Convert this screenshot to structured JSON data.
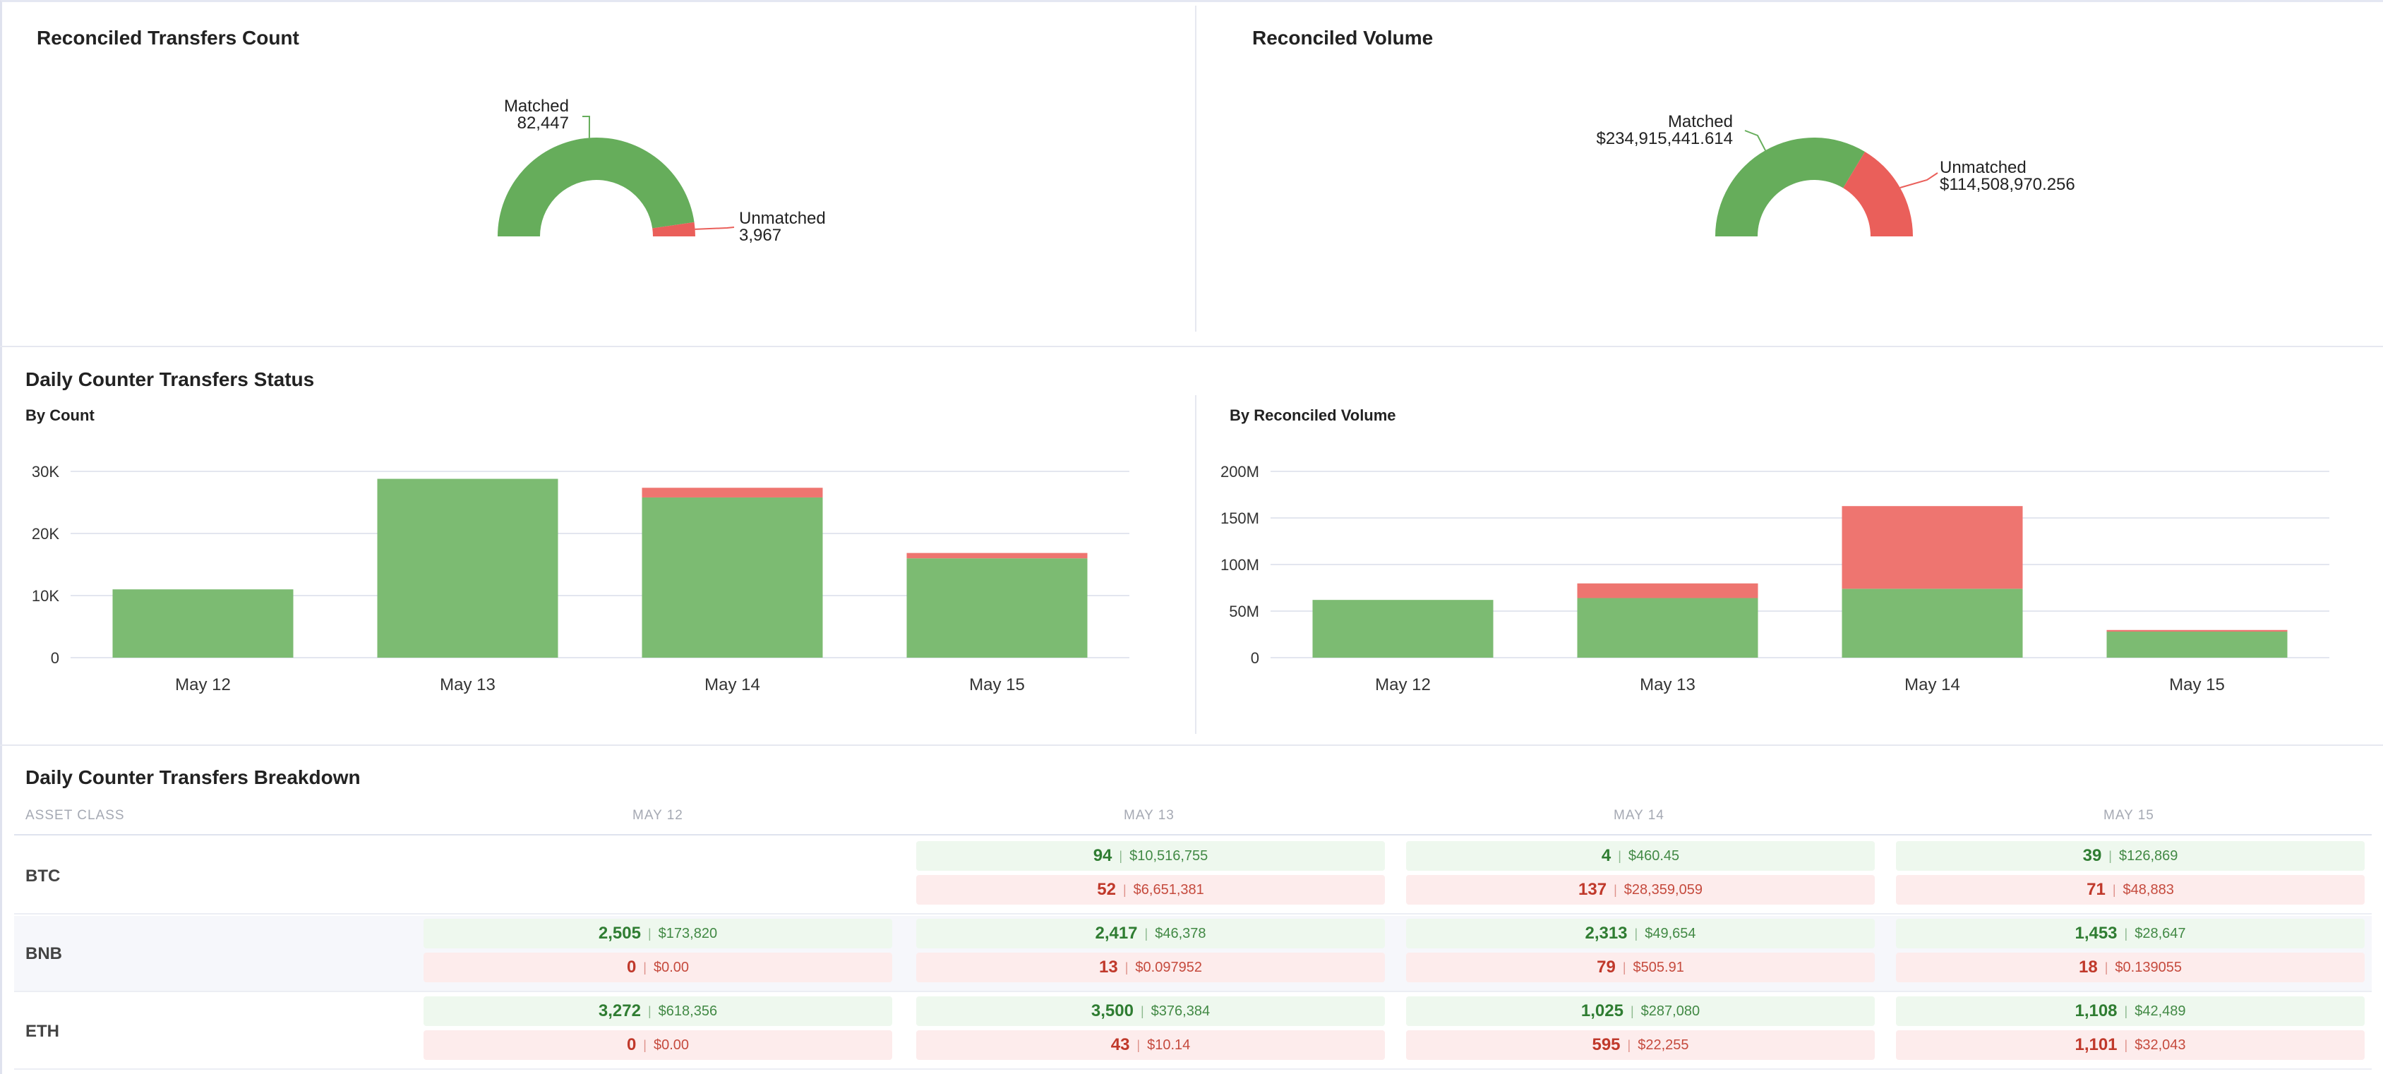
{
  "count_panel": {
    "title": "Reconciled Transfers Count",
    "matched_label": "Matched",
    "matched_value": "82,447",
    "unmatched_label": "Unmatched",
    "unmatched_value": "3,967",
    "matched_fraction": 0.954
  },
  "volume_panel": {
    "title": "Reconciled Volume",
    "matched_label": "Matched",
    "matched_value": "$234,915,441.614",
    "unmatched_label": "Unmatched",
    "unmatched_value": "$114,508,970.256",
    "matched_fraction": 0.672
  },
  "daily_status": {
    "title": "Daily Counter Transfers Status",
    "count_subtitle": "By Count",
    "volume_subtitle": "By Reconciled Volume"
  },
  "chart_data": [
    {
      "type": "bar",
      "title": "By Count",
      "categories": [
        "May 12",
        "May 13",
        "May 14",
        "May 15"
      ],
      "series": [
        {
          "name": "Matched",
          "values": [
            11000,
            28800,
            25800,
            16000
          ]
        },
        {
          "name": "Unmatched",
          "values": [
            0,
            0,
            1900,
            1200
          ]
        }
      ],
      "yticks": [
        "0",
        "10K",
        "20K",
        "30K"
      ],
      "ylim": [
        0,
        30000
      ],
      "stacked": true,
      "colors": {
        "Matched": "#7cbb72",
        "Unmatched": "#ee7570"
      }
    },
    {
      "type": "bar",
      "title": "By Reconciled Volume",
      "categories": [
        "May 12",
        "May 13",
        "May 14",
        "May 15"
      ],
      "series": [
        {
          "name": "Matched",
          "values": [
            62000000,
            64000000,
            74000000,
            28000000
          ]
        },
        {
          "name": "Unmatched",
          "values": [
            0,
            18000000,
            91000000,
            4000000
          ]
        }
      ],
      "yticks": [
        "0",
        "50M",
        "100M",
        "150M",
        "200M"
      ],
      "ylim": [
        0,
        200000000
      ],
      "stacked": true,
      "colors": {
        "Matched": "#7cbb72",
        "Unmatched": "#ee7570"
      }
    }
  ],
  "breakdown": {
    "title": "Daily Counter Transfers Breakdown",
    "headers": [
      "ASSET CLASS",
      "MAY 12",
      "MAY 13",
      "MAY 14",
      "MAY 15"
    ],
    "rows": [
      {
        "asset": "BTC",
        "cells": [
          null,
          {
            "g_count": "94",
            "g_vol": "$10,516,755",
            "r_count": "52",
            "r_vol": "$6,651,381"
          },
          {
            "g_count": "4",
            "g_vol": "$460.45",
            "r_count": "137",
            "r_vol": "$28,359,059"
          },
          {
            "g_count": "39",
            "g_vol": "$126,869",
            "r_count": "71",
            "r_vol": "$48,883"
          }
        ]
      },
      {
        "asset": "BNB",
        "cells": [
          {
            "g_count": "2,505",
            "g_vol": "$173,820",
            "r_count": "0",
            "r_vol": "$0.00"
          },
          {
            "g_count": "2,417",
            "g_vol": "$46,378",
            "r_count": "13",
            "r_vol": "$0.097952"
          },
          {
            "g_count": "2,313",
            "g_vol": "$49,654",
            "r_count": "79",
            "r_vol": "$505.91"
          },
          {
            "g_count": "1,453",
            "g_vol": "$28,647",
            "r_count": "18",
            "r_vol": "$0.139055"
          }
        ]
      },
      {
        "asset": "ETH",
        "cells": [
          {
            "g_count": "3,272",
            "g_vol": "$618,356",
            "r_count": "0",
            "r_vol": "$0.00"
          },
          {
            "g_count": "3,500",
            "g_vol": "$376,384",
            "r_count": "43",
            "r_vol": "$10.14"
          },
          {
            "g_count": "1,025",
            "g_vol": "$287,080",
            "r_count": "595",
            "r_vol": "$22,255"
          },
          {
            "g_count": "1,108",
            "g_vol": "$42,489",
            "r_count": "1,101",
            "r_vol": "$32,043"
          }
        ]
      }
    ]
  }
}
